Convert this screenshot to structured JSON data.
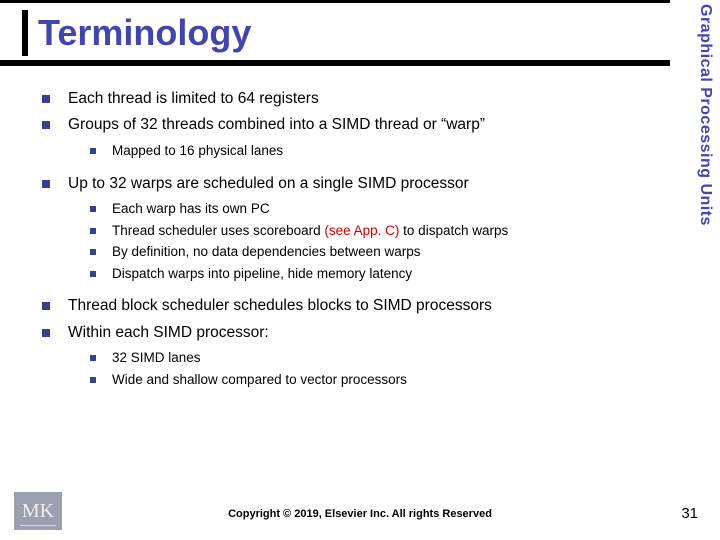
{
  "title": "Terminology",
  "sidebar_label": "Graphical Processing Units",
  "colors": {
    "title_color": "#4246ac",
    "bullet_color": "#3a3f8f",
    "red": "#cc0000",
    "logo_bg": "#9aa0b0"
  },
  "bullets": {
    "b1": "Each thread is limited to 64 registers",
    "b2": "Groups of 32 threads combined into a SIMD thread or “warp”",
    "b2_1": "Mapped to 16 physical lanes",
    "b3": "Up to 32 warps are scheduled on a single SIMD processor",
    "b3_1": "Each warp has its own PC",
    "b3_2a": "Thread scheduler uses scoreboard ",
    "b3_2b": "(see App. C)",
    "b3_2c": " to dispatch warps",
    "b3_3": "By definition, no data dependencies between warps",
    "b3_4": "Dispatch warps into pipeline, hide memory latency",
    "b4": "Thread block scheduler schedules blocks to SIMD processors",
    "b5": "Within each SIMD processor:",
    "b5_1": "32 SIMD lanes",
    "b5_2": "Wide and shallow compared to vector processors"
  },
  "logo": {
    "m": "M",
    "k": "K"
  },
  "copyright": "Copyright © 2019, Elsevier Inc. All rights Reserved",
  "page_number": "31"
}
